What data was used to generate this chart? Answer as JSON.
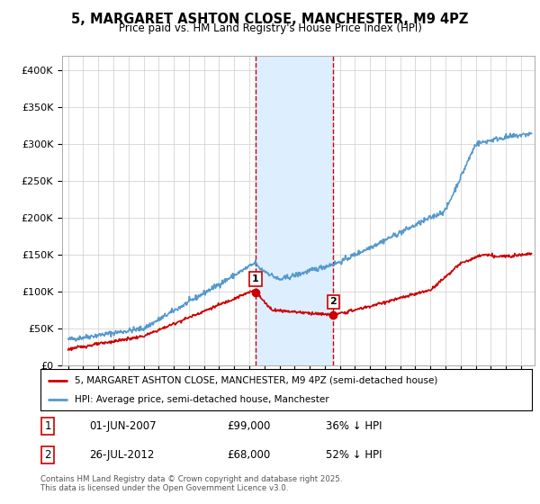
{
  "title": "5, MARGARET ASHTON CLOSE, MANCHESTER, M9 4PZ",
  "subtitle": "Price paid vs. HM Land Registry's House Price Index (HPI)",
  "legend_line1": "5, MARGARET ASHTON CLOSE, MANCHESTER, M9 4PZ (semi-detached house)",
  "legend_line2": "HPI: Average price, semi-detached house, Manchester",
  "footnote": "Contains HM Land Registry data © Crown copyright and database right 2025.\nThis data is licensed under the Open Government Licence v3.0.",
  "transaction1": {
    "label": "1",
    "date": "01-JUN-2007",
    "price": 99000,
    "hpi_pct": "36% ↓ HPI"
  },
  "transaction2": {
    "label": "2",
    "date": "26-JUL-2012",
    "price": 68000,
    "hpi_pct": "52% ↓ HPI"
  },
  "date1_num": 2007.42,
  "date2_num": 2012.57,
  "red_color": "#cc0000",
  "blue_color": "#5599cc",
  "shade_color": "#ddeeff",
  "vline_color": "#cc0000",
  "ylim": [
    0,
    420000
  ],
  "yticks": [
    0,
    50000,
    100000,
    150000,
    200000,
    250000,
    300000,
    350000,
    400000
  ],
  "background_color": "#ffffff",
  "grid_color": "#cccccc",
  "xlim_left": 1994.6,
  "xlim_right": 2025.9
}
